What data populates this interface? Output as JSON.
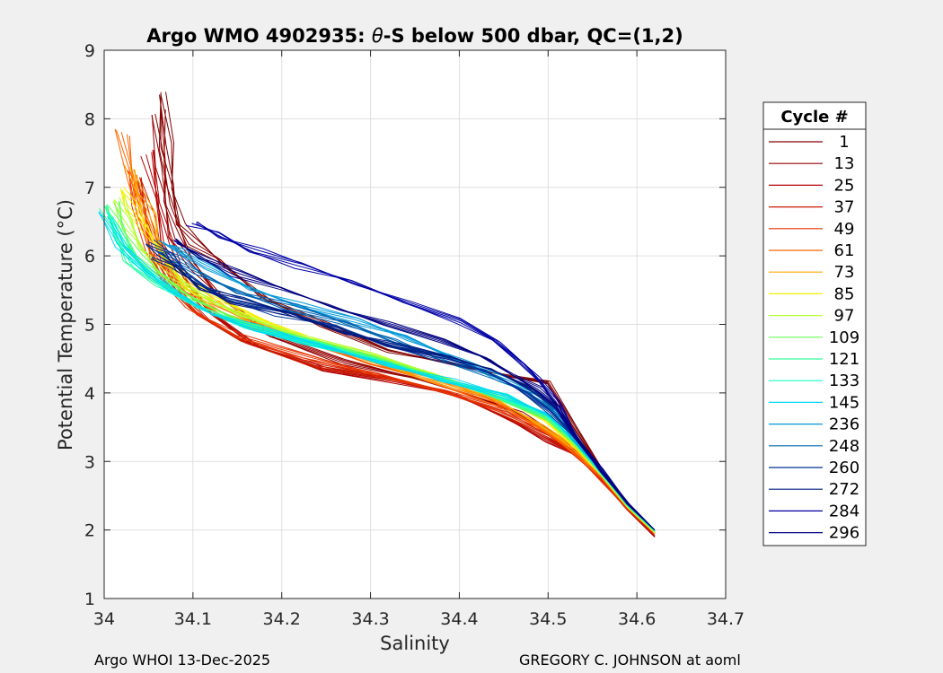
{
  "title_prefix": "Argo WMO 4902935: ",
  "title_theta": "θ",
  "title_suffix": "-S below 500 dbar,  QC=(1,2)",
  "footer": {
    "left": "Argo WHOI 13-Dec-2025",
    "right": "GREGORY C. JOHNSON at aoml"
  },
  "legend": {
    "title": "Cycle #",
    "entries": [
      {
        "label": "1",
        "color": "#800000"
      },
      {
        "label": "13",
        "color": "#940000"
      },
      {
        "label": "25",
        "color": "#b30000"
      },
      {
        "label": "37",
        "color": "#cc1a00"
      },
      {
        "label": "49",
        "color": "#e63300"
      },
      {
        "label": "61",
        "color": "#ff6600"
      },
      {
        "label": "73",
        "color": "#ffa500"
      },
      {
        "label": "85",
        "color": "#f5f000"
      },
      {
        "label": "97",
        "color": "#b3ff33"
      },
      {
        "label": "109",
        "color": "#66ff55"
      },
      {
        "label": "121",
        "color": "#33ff99"
      },
      {
        "label": "133",
        "color": "#1affcc"
      },
      {
        "label": "145",
        "color": "#00d9f0"
      },
      {
        "label": "236",
        "color": "#0099d9"
      },
      {
        "label": "248",
        "color": "#0066b3"
      },
      {
        "label": "260",
        "color": "#003399"
      },
      {
        "label": "272",
        "color": "#001a80"
      },
      {
        "label": "284",
        "color": "#0000a6"
      },
      {
        "label": "296",
        "color": "#000080"
      }
    ]
  },
  "chart_data": {
    "type": "line",
    "title": "Argo WMO 4902935: θ-S below 500 dbar,  QC=(1,2)",
    "xlabel": "Salinity",
    "ylabel": "Potential Temperature (°C)",
    "xlim": [
      34.0,
      34.7
    ],
    "ylim": [
      1,
      9
    ],
    "xticks": [
      34.0,
      34.1,
      34.2,
      34.3,
      34.4,
      34.5,
      34.6,
      34.7
    ],
    "xtick_labels": [
      "34",
      "34.1",
      "34.2",
      "34.3",
      "34.4",
      "34.5",
      "34.6",
      "34.7"
    ],
    "yticks": [
      1,
      2,
      3,
      4,
      5,
      6,
      7,
      8,
      9
    ],
    "ytick_labels": [
      "1",
      "2",
      "3",
      "4",
      "5",
      "6",
      "7",
      "8",
      "9"
    ],
    "grid": true,
    "legend_position": "outside-right",
    "series": [
      {
        "name": "1",
        "x": [
          34.065,
          34.07,
          34.075,
          34.085,
          34.1,
          34.13,
          34.18,
          34.25,
          34.32,
          34.4,
          34.46,
          34.5,
          34.53,
          34.57,
          34.6,
          34.62
        ],
        "y": [
          8.4,
          7.6,
          7.0,
          6.5,
          6.2,
          5.9,
          5.4,
          5.0,
          4.6,
          4.4,
          4.25,
          4.15,
          3.5,
          2.7,
          2.2,
          1.9
        ]
      },
      {
        "name": "13",
        "x": [
          34.06,
          34.065,
          34.07,
          34.08,
          34.1,
          34.13,
          34.19,
          34.27,
          34.35,
          34.42,
          34.47,
          34.51,
          34.54,
          34.57,
          34.6,
          34.62
        ],
        "y": [
          8.1,
          7.3,
          6.8,
          6.3,
          5.85,
          5.4,
          4.85,
          4.45,
          4.2,
          3.95,
          3.7,
          3.35,
          3.05,
          2.65,
          2.2,
          1.9
        ]
      },
      {
        "name": "25",
        "x": [
          34.05,
          34.06,
          34.07,
          34.09,
          34.12,
          34.17,
          34.25,
          34.33,
          34.4,
          34.46,
          34.5,
          34.53,
          34.56,
          34.59,
          34.62
        ],
        "y": [
          7.5,
          6.8,
          6.2,
          5.6,
          5.15,
          4.7,
          4.35,
          4.15,
          3.95,
          3.6,
          3.3,
          3.1,
          2.75,
          2.3,
          1.9
        ]
      },
      {
        "name": "37",
        "x": [
          34.04,
          34.05,
          34.06,
          34.08,
          34.11,
          34.16,
          34.24,
          34.32,
          34.39,
          34.45,
          34.5,
          34.53,
          34.56,
          34.59,
          34.62
        ],
        "y": [
          7.1,
          6.6,
          6.0,
          5.5,
          5.1,
          4.75,
          4.4,
          4.2,
          4.0,
          3.7,
          3.35,
          3.1,
          2.75,
          2.3,
          1.92
        ]
      },
      {
        "name": "49",
        "x": [
          34.03,
          34.04,
          34.05,
          34.07,
          34.1,
          34.15,
          34.23,
          34.31,
          34.38,
          34.45,
          34.5,
          34.53,
          34.56,
          34.59,
          34.62
        ],
        "y": [
          7.2,
          6.7,
          6.1,
          5.6,
          5.2,
          4.85,
          4.5,
          4.25,
          4.05,
          3.75,
          3.4,
          3.12,
          2.75,
          2.3,
          1.95
        ]
      },
      {
        "name": "61",
        "x": [
          34.02,
          34.03,
          34.04,
          34.06,
          34.09,
          34.14,
          34.22,
          34.3,
          34.38,
          34.44,
          34.49,
          34.53,
          34.56,
          34.59,
          34.62
        ],
        "y": [
          7.8,
          7.2,
          6.6,
          6.0,
          5.5,
          5.1,
          4.75,
          4.45,
          4.15,
          3.85,
          3.5,
          3.15,
          2.78,
          2.32,
          1.95
        ]
      },
      {
        "name": "73",
        "x": [
          34.03,
          34.04,
          34.05,
          34.06,
          34.09,
          34.14,
          34.22,
          34.3,
          34.37,
          34.44,
          34.49,
          34.53,
          34.56,
          34.59,
          34.62
        ],
        "y": [
          7.3,
          6.9,
          6.6,
          6.2,
          5.6,
          5.15,
          4.8,
          4.5,
          4.2,
          3.9,
          3.55,
          3.2,
          2.8,
          2.33,
          1.96
        ]
      },
      {
        "name": "85",
        "x": [
          34.02,
          34.03,
          34.045,
          34.07,
          34.1,
          34.15,
          34.22,
          34.3,
          34.37,
          34.44,
          34.5,
          34.53,
          34.56,
          34.59,
          34.62
        ],
        "y": [
          7.0,
          6.7,
          6.4,
          5.95,
          5.55,
          5.2,
          4.85,
          4.55,
          4.25,
          3.95,
          3.6,
          3.22,
          2.8,
          2.33,
          1.96
        ]
      },
      {
        "name": "97",
        "x": [
          34.015,
          34.025,
          34.04,
          34.065,
          34.1,
          34.15,
          34.22,
          34.3,
          34.37,
          34.44,
          34.5,
          34.53,
          34.56,
          34.59,
          34.62
        ],
        "y": [
          6.85,
          6.5,
          6.15,
          5.8,
          5.45,
          5.15,
          4.85,
          4.55,
          4.27,
          3.98,
          3.62,
          3.25,
          2.82,
          2.34,
          1.97
        ]
      },
      {
        "name": "109",
        "x": [
          34.01,
          34.02,
          34.035,
          34.06,
          34.1,
          34.15,
          34.22,
          34.3,
          34.38,
          34.44,
          34.5,
          34.53,
          34.56,
          34.59,
          34.62
        ],
        "y": [
          6.75,
          6.4,
          6.05,
          5.7,
          5.35,
          5.08,
          4.8,
          4.52,
          4.22,
          3.95,
          3.62,
          3.26,
          2.83,
          2.35,
          1.98
        ]
      },
      {
        "name": "121",
        "x": [
          34.0,
          34.015,
          34.03,
          34.06,
          34.1,
          34.15,
          34.22,
          34.3,
          34.38,
          34.44,
          34.5,
          34.53,
          34.56,
          34.59,
          34.62
        ],
        "y": [
          6.7,
          6.3,
          5.95,
          5.6,
          5.3,
          5.05,
          4.78,
          4.5,
          4.22,
          3.96,
          3.65,
          3.28,
          2.84,
          2.36,
          1.98
        ]
      },
      {
        "name": "133",
        "x": [
          34.005,
          34.02,
          34.04,
          34.07,
          34.11,
          34.16,
          34.23,
          34.31,
          34.38,
          34.45,
          34.5,
          34.53,
          34.56,
          34.59,
          34.62
        ],
        "y": [
          6.6,
          6.2,
          5.85,
          5.5,
          5.22,
          4.98,
          4.72,
          4.45,
          4.2,
          3.95,
          3.66,
          3.3,
          2.85,
          2.37,
          1.99
        ]
      },
      {
        "name": "145",
        "x": [
          34.0,
          34.02,
          34.05,
          34.08,
          34.12,
          34.17,
          34.24,
          34.32,
          34.39,
          34.45,
          34.5,
          34.53,
          34.56,
          34.59,
          34.62
        ],
        "y": [
          6.6,
          6.15,
          5.75,
          5.45,
          5.18,
          4.95,
          4.68,
          4.42,
          4.18,
          3.95,
          3.68,
          3.32,
          2.86,
          2.38,
          2.0
        ]
      },
      {
        "name": "236",
        "x": [
          34.07,
          34.09,
          34.12,
          34.16,
          34.22,
          34.28,
          34.34,
          34.4,
          34.45,
          34.49,
          34.51,
          34.53,
          34.56,
          34.59,
          34.62
        ],
        "y": [
          6.2,
          6.05,
          5.8,
          5.55,
          5.3,
          5.05,
          4.8,
          4.5,
          4.2,
          3.95,
          3.7,
          3.35,
          2.87,
          2.38,
          2.0
        ]
      },
      {
        "name": "248",
        "x": [
          34.06,
          34.08,
          34.11,
          34.15,
          34.21,
          34.27,
          34.33,
          34.39,
          34.44,
          34.48,
          34.51,
          34.53,
          34.56,
          34.59,
          34.62
        ],
        "y": [
          6.1,
          5.95,
          5.7,
          5.5,
          5.25,
          5.0,
          4.75,
          4.48,
          4.22,
          3.98,
          3.72,
          3.36,
          2.87,
          2.38,
          2.0
        ]
      },
      {
        "name": "260",
        "x": [
          34.05,
          34.07,
          34.1,
          34.14,
          34.2,
          34.26,
          34.32,
          34.38,
          34.43,
          34.47,
          34.5,
          34.53,
          34.56,
          34.59,
          34.62
        ],
        "y": [
          6.2,
          6.0,
          5.65,
          5.4,
          5.15,
          4.95,
          4.72,
          4.5,
          4.3,
          4.05,
          3.75,
          3.36,
          2.87,
          2.38,
          2.0
        ]
      },
      {
        "name": "272",
        "x": [
          34.06,
          34.08,
          34.11,
          34.15,
          34.21,
          34.27,
          34.33,
          34.39,
          34.44,
          34.48,
          34.51,
          34.53,
          34.56,
          34.59,
          34.62
        ],
        "y": [
          6.0,
          5.8,
          5.55,
          5.35,
          5.12,
          4.9,
          4.7,
          4.5,
          4.32,
          4.08,
          3.78,
          3.37,
          2.87,
          2.38,
          2.0
        ]
      },
      {
        "name": "284",
        "x": [
          34.1,
          34.13,
          34.17,
          34.22,
          34.28,
          34.34,
          34.4,
          34.44,
          34.47,
          34.49,
          34.51,
          34.53,
          34.56,
          34.59,
          34.62
        ],
        "y": [
          6.45,
          6.3,
          6.1,
          5.85,
          5.6,
          5.35,
          5.05,
          4.75,
          4.45,
          4.2,
          3.85,
          3.38,
          2.87,
          2.38,
          2.0
        ]
      },
      {
        "name": "296",
        "x": [
          34.08,
          34.11,
          34.15,
          34.2,
          34.26,
          34.32,
          34.38,
          34.43,
          34.46,
          34.49,
          34.51,
          34.53,
          34.56,
          34.59,
          34.62
        ],
        "y": [
          6.2,
          6.0,
          5.75,
          5.5,
          5.25,
          5.02,
          4.75,
          4.5,
          4.28,
          4.05,
          3.8,
          3.38,
          2.87,
          2.38,
          2.0
        ]
      }
    ]
  }
}
